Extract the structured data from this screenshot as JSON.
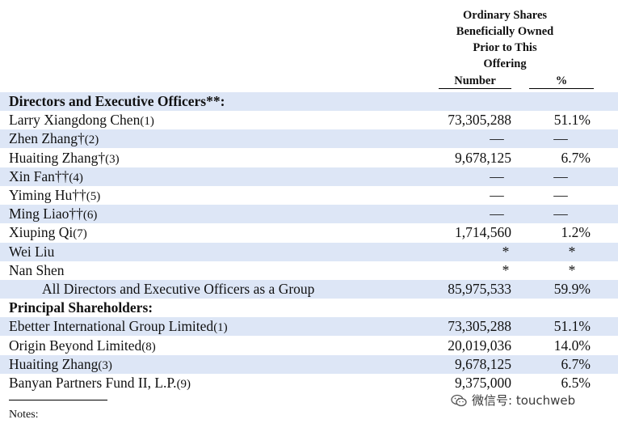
{
  "header": {
    "group_lines": [
      "Ordinary Shares",
      "Beneficially Owned",
      "Prior to This",
      "Offering"
    ],
    "col_number": "Number",
    "col_percent": "%"
  },
  "rows": [
    {
      "name": "Directors and Executive Officers**:",
      "bold": true,
      "shade": true
    },
    {
      "name": "Larry Xiangdong Chen",
      "note": "(1)",
      "number": "73,305,288",
      "percent": "51.1%",
      "shade": false
    },
    {
      "name": "Zhen Zhang†",
      "note": "(2)",
      "number": "—",
      "percent": "—",
      "dash": true,
      "shade": true
    },
    {
      "name": "Huaiting Zhang†",
      "note": "(3)",
      "number": "9,678,125",
      "percent": "6.7%",
      "shade": false
    },
    {
      "name": "Xin Fan††",
      "note": "(4)",
      "number": "—",
      "percent": "—",
      "dash": true,
      "shade": true
    },
    {
      "name": "Yiming Hu††",
      "note": "(5)",
      "number": "—",
      "percent": "—",
      "dash": true,
      "shade": false
    },
    {
      "name": "Ming Liao††",
      "note": "(6)",
      "number": "—",
      "percent": "—",
      "dash": true,
      "shade": true
    },
    {
      "name": "Xiuping Qi",
      "note": "(7)",
      "number": "1,714,560",
      "percent": "1.2%",
      "shade": false
    },
    {
      "name": "Wei Liu",
      "number": "*",
      "percent": "*",
      "star": true,
      "shade": true
    },
    {
      "name": "Nan Shen",
      "number": "*",
      "percent": "*",
      "star": true,
      "shade": false
    },
    {
      "name": "All Directors and Executive Officers as a Group",
      "indent": true,
      "number": "85,975,533",
      "percent": "59.9%",
      "shade": true
    },
    {
      "name": "Principal Shareholders:",
      "bold": true,
      "shade": false
    },
    {
      "name": "Ebetter International Group Limited",
      "note": "(1)",
      "number": "73,305,288",
      "percent": "51.1%",
      "shade": true
    },
    {
      "name": "Origin Beyond Limited",
      "note": "(8)",
      "number": "20,019,036",
      "percent": "14.0%",
      "shade": false
    },
    {
      "name": "Huaiting Zhang",
      "note": "(3)",
      "number": "9,678,125",
      "percent": "6.7%",
      "shade": true
    },
    {
      "name": "Banyan Partners Fund II, L.P.",
      "note": "(9)",
      "number": "9,375,000",
      "percent": "6.5%",
      "shade": false
    }
  ],
  "notes_label": "Notes:",
  "watermark": {
    "text": "微信号: touchweb",
    "icon": "wechat-icon"
  }
}
